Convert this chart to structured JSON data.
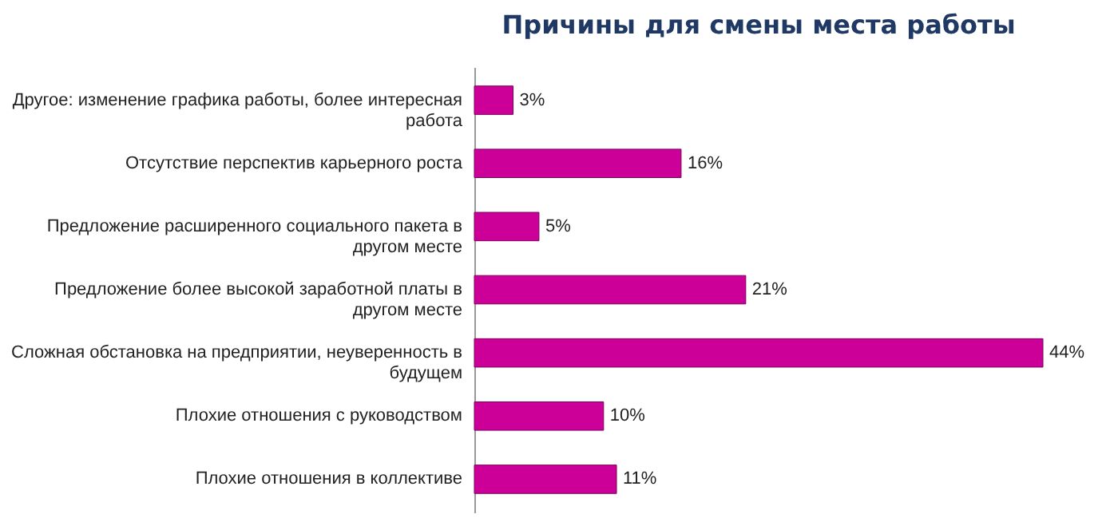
{
  "chart_data": {
    "type": "bar",
    "orientation": "horizontal",
    "title": "Причины для смены места работы",
    "categories": [
      "Другое: изменение графика работы, более интересная работа",
      "Отсутствие перспектив карьерного роста",
      "Предложение расширенного социального пакета в другом месте",
      "Предложение более высокой заработной платы в другом месте",
      "Сложная обстановка на предприятии, неуверенность в будущем",
      "Плохие отношения с руководством",
      "Плохие отношения в коллективе"
    ],
    "values": [
      3,
      16,
      5,
      21,
      44,
      10,
      11
    ],
    "value_labels": [
      "3%",
      "16%",
      "5%",
      "21%",
      "44%",
      "10%",
      "11%"
    ],
    "color": "#cc0099"
  }
}
